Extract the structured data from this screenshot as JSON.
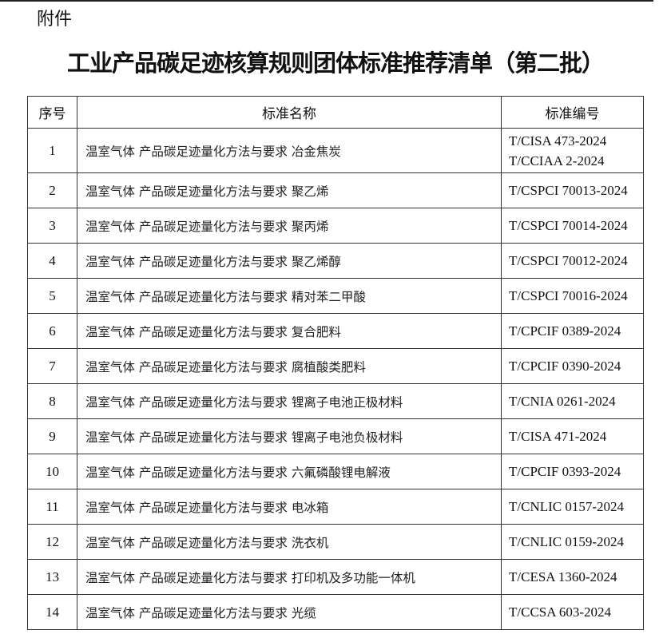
{
  "attachment_label": "附件",
  "title": "工业产品碳足迹核算规则团体标准推荐清单（第二批）",
  "headers": {
    "no": "序号",
    "name": "标准名称",
    "code": "标准编号"
  },
  "rows": [
    {
      "no": "1",
      "name": "温室气体 产品碳足迹量化方法与要求 冶金焦炭",
      "codes": [
        "T/CISA 473-2024",
        "T/CCIAA 2-2024"
      ]
    },
    {
      "no": "2",
      "name": "温室气体 产品碳足迹量化方法与要求 聚乙烯",
      "codes": [
        "T/CSPCI 70013-2024"
      ]
    },
    {
      "no": "3",
      "name": "温室气体 产品碳足迹量化方法与要求 聚丙烯",
      "codes": [
        "T/CSPCI 70014-2024"
      ]
    },
    {
      "no": "4",
      "name": "温室气体 产品碳足迹量化方法与要求 聚乙烯醇",
      "codes": [
        "T/CSPCI 70012-2024"
      ]
    },
    {
      "no": "5",
      "name": "温室气体 产品碳足迹量化方法与要求 精对苯二甲酸",
      "codes": [
        "T/CSPCI 70016-2024"
      ]
    },
    {
      "no": "6",
      "name": "温室气体 产品碳足迹量化方法与要求 复合肥料",
      "codes": [
        "T/CPCIF 0389-2024"
      ]
    },
    {
      "no": "7",
      "name": "温室气体 产品碳足迹量化方法与要求 腐植酸类肥料",
      "codes": [
        "T/CPCIF 0390-2024"
      ]
    },
    {
      "no": "8",
      "name": "温室气体 产品碳足迹量化方法与要求 锂离子电池正极材料",
      "codes": [
        "T/CNIA 0261-2024"
      ]
    },
    {
      "no": "9",
      "name": "温室气体 产品碳足迹量化方法与要求 锂离子电池负极材料",
      "codes": [
        "T/CISA 471-2024"
      ]
    },
    {
      "no": "10",
      "name": "温室气体 产品碳足迹量化方法与要求 六氟磷酸锂电解液",
      "codes": [
        "T/CPCIF 0393-2024"
      ]
    },
    {
      "no": "11",
      "name": "温室气体 产品碳足迹量化方法与要求 电冰箱",
      "codes": [
        "T/CNLIC 0157-2024"
      ]
    },
    {
      "no": "12",
      "name": "温室气体 产品碳足迹量化方法与要求 洗衣机",
      "codes": [
        "T/CNLIC 0159-2024"
      ]
    },
    {
      "no": "13",
      "name": "温室气体 产品碳足迹量化方法与要求 打印机及多功能一体机",
      "codes": [
        "T/CESA 1360-2024"
      ]
    },
    {
      "no": "14",
      "name": "温室气体 产品碳足迹量化方法与要求 光缆",
      "codes": [
        "T/CCSA 603-2024"
      ]
    }
  ]
}
